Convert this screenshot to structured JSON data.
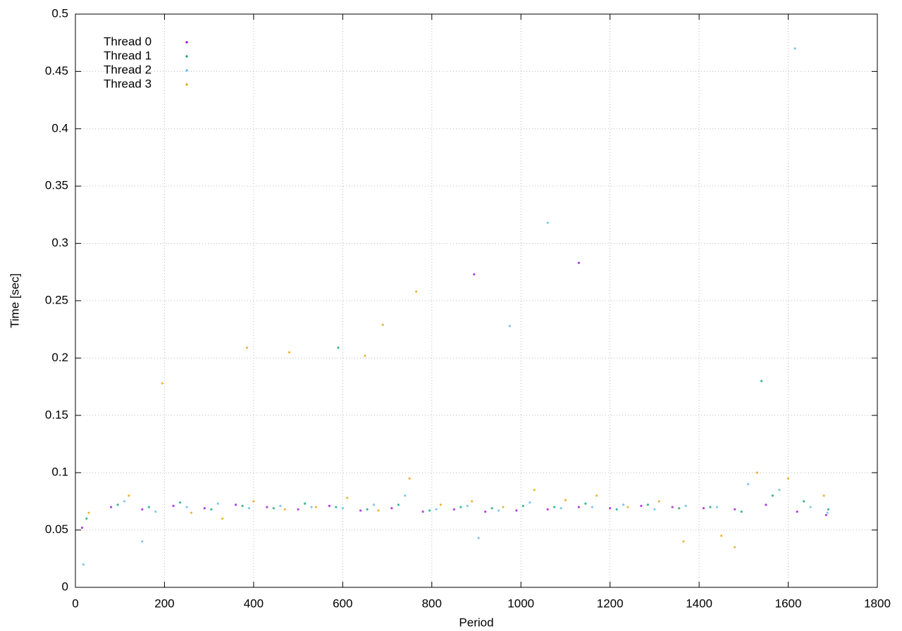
{
  "chart_data": {
    "type": "scatter",
    "xlabel": "Period",
    "ylabel": "Time [sec]",
    "xlim": [
      0,
      1800
    ],
    "xticks": [
      0,
      200,
      400,
      600,
      800,
      1000,
      1200,
      1400,
      1600,
      1800
    ],
    "ylim": [
      0,
      0.5
    ],
    "yticks": [
      0,
      0.05,
      0.1,
      0.15,
      0.2,
      0.25,
      0.3,
      0.35,
      0.4,
      0.45,
      0.5
    ],
    "grid": true,
    "legend": "top-left",
    "series": [
      {
        "name": "Thread 0",
        "color": "#9400d3",
        "x": [
          15,
          80,
          150,
          220,
          290,
          360,
          430,
          500,
          570,
          640,
          710,
          780,
          850,
          920,
          990,
          1060,
          1130,
          1200,
          1270,
          1340,
          1410,
          1480,
          1550,
          1620,
          1685,
          1130,
          895
        ],
        "values": [
          0.052,
          0.07,
          0.068,
          0.071,
          0.069,
          0.072,
          0.07,
          0.068,
          0.071,
          0.067,
          0.069,
          0.066,
          0.068,
          0.066,
          0.067,
          0.068,
          0.07,
          0.069,
          0.071,
          0.07,
          0.069,
          0.068,
          0.072,
          0.066,
          0.063,
          0.283,
          0.273
        ]
      },
      {
        "name": "Thread 1",
        "color": "#009e73",
        "x": [
          25,
          95,
          165,
          235,
          305,
          375,
          445,
          515,
          585,
          655,
          725,
          795,
          865,
          935,
          1005,
          1075,
          1145,
          1215,
          1285,
          1355,
          1425,
          1495,
          1565,
          1635,
          1690,
          590,
          1540
        ],
        "values": [
          0.06,
          0.072,
          0.07,
          0.074,
          0.068,
          0.071,
          0.069,
          0.073,
          0.07,
          0.068,
          0.072,
          0.067,
          0.07,
          0.069,
          0.071,
          0.07,
          0.073,
          0.068,
          0.072,
          0.069,
          0.07,
          0.066,
          0.08,
          0.075,
          0.068,
          0.209,
          0.18
        ]
      },
      {
        "name": "Thread 2",
        "color": "#56b4e9",
        "x": [
          18,
          110,
          180,
          250,
          320,
          390,
          460,
          530,
          600,
          670,
          740,
          810,
          880,
          950,
          1020,
          1090,
          1160,
          1230,
          1300,
          1370,
          1440,
          1510,
          1580,
          1650,
          1688,
          1060,
          975,
          1615,
          150,
          905
        ],
        "values": [
          0.02,
          0.075,
          0.066,
          0.07,
          0.073,
          0.069,
          0.071,
          0.07,
          0.069,
          0.072,
          0.08,
          0.068,
          0.071,
          0.067,
          0.074,
          0.069,
          0.07,
          0.072,
          0.068,
          0.071,
          0.07,
          0.09,
          0.085,
          0.07,
          0.065,
          0.318,
          0.228,
          0.47,
          0.04,
          0.043
        ]
      },
      {
        "name": "Thread 3",
        "color": "#e69f00",
        "x": [
          30,
          120,
          195,
          260,
          330,
          400,
          470,
          540,
          610,
          680,
          750,
          820,
          890,
          960,
          1030,
          1100,
          1170,
          1240,
          1310,
          1365,
          1450,
          1480,
          1530,
          1600,
          1680,
          765,
          690,
          385,
          480,
          650
        ],
        "values": [
          0.065,
          0.08,
          0.178,
          0.065,
          0.06,
          0.075,
          0.068,
          0.07,
          0.078,
          0.067,
          0.095,
          0.072,
          0.075,
          0.07,
          0.085,
          0.076,
          0.08,
          0.07,
          0.075,
          0.04,
          0.045,
          0.035,
          0.1,
          0.095,
          0.08,
          0.258,
          0.229,
          0.209,
          0.205,
          0.202
        ]
      }
    ]
  }
}
